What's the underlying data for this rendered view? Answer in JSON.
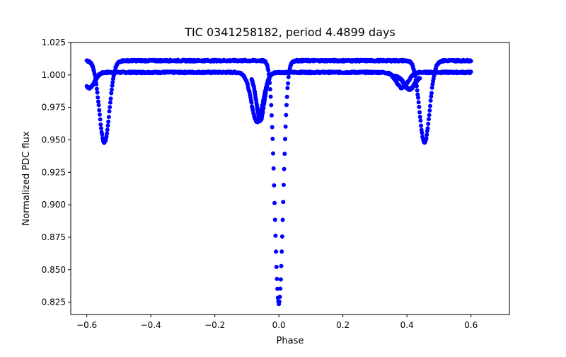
{
  "chart_data": {
    "type": "scatter",
    "title": "TIC 0341258182, period 4.4899 days",
    "xlabel": "Phase",
    "ylabel": "Normalized PDC flux",
    "xlim": [
      -0.65,
      0.72
    ],
    "ylim": [
      0.8155,
      1.025
    ],
    "x_ticks": [
      -0.6,
      -0.4,
      -0.2,
      0.0,
      0.2,
      0.4,
      0.6
    ],
    "x_tick_labels": [
      "−0.6",
      "−0.4",
      "−0.2",
      "0.0",
      "0.2",
      "0.4",
      "0.6"
    ],
    "y_ticks": [
      0.825,
      0.85,
      0.875,
      0.9,
      0.925,
      0.95,
      0.975,
      1.0,
      1.025
    ],
    "y_tick_labels": [
      "0.825",
      "0.850",
      "0.875",
      "0.900",
      "0.925",
      "0.950",
      "0.975",
      "1.000",
      "1.025"
    ],
    "marker_color": "#0000ff",
    "series": [
      {
        "name": "main-baseline",
        "baseline": 1.002,
        "x_range": [
          -0.6,
          0.6
        ],
        "dips": [
          {
            "center": -0.592,
            "depth": 0.012,
            "width": 0.016
          },
          {
            "center": -0.068,
            "depth": 0.038,
            "width": 0.018
          },
          {
            "center": 0.385,
            "depth": 0.012,
            "width": 0.018
          }
        ]
      },
      {
        "name": "offset-cluster-left",
        "baseline": 0.999,
        "x_range": [
          -0.085,
          -0.03
        ],
        "dips": [
          {
            "center": -0.058,
            "depth": 0.034,
            "width": 0.012
          }
        ]
      },
      {
        "name": "offset-cluster-right",
        "baseline": 0.999,
        "x_range": [
          0.36,
          0.44
        ],
        "dips": [
          {
            "center": 0.408,
            "depth": 0.01,
            "width": 0.016
          }
        ]
      },
      {
        "name": "upper-baseline",
        "baseline": 1.011,
        "x_range": [
          -0.6,
          0.6
        ],
        "dips": [
          {
            "center": -0.545,
            "depth": 0.063,
            "width": 0.016
          },
          {
            "center": 0.0,
            "depth": 0.187,
            "width": 0.013
          },
          {
            "center": 0.455,
            "depth": 0.063,
            "width": 0.016
          }
        ]
      }
    ]
  }
}
